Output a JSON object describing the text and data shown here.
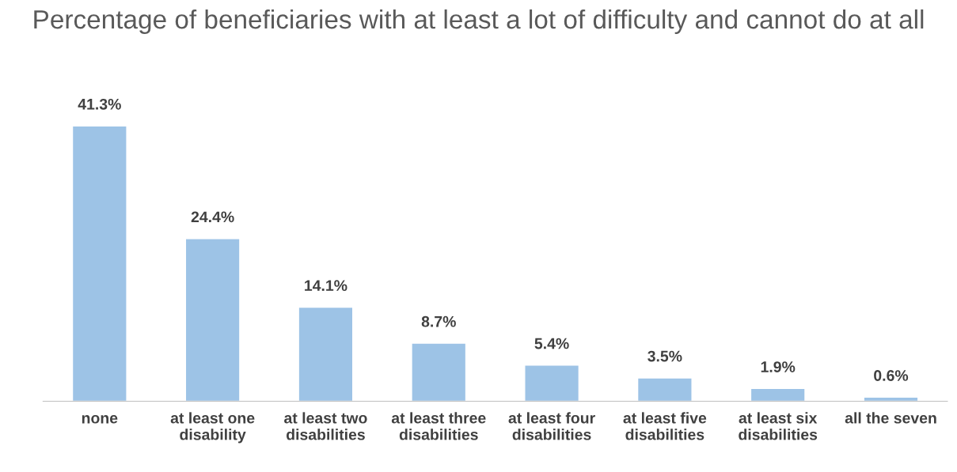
{
  "chart_data": {
    "type": "bar",
    "title": "Percentage of beneficiaries with at least a lot of difficulty and cannot do at all",
    "categories": [
      "none",
      "at least one disability",
      "at least two disabilities",
      "at least three disabilities",
      "at least four disabilities",
      "at least five disabilities",
      "at least six disabilities",
      "all the seven"
    ],
    "values": [
      41.3,
      24.4,
      14.1,
      8.7,
      5.4,
      3.5,
      1.9,
      0.6
    ],
    "value_labels": [
      "41.3%",
      "24.4%",
      "14.1%",
      "8.7%",
      "5.4%",
      "3.5%",
      "1.9%",
      "0.6%"
    ],
    "color": "#9dc3e6",
    "grid": false,
    "legend": false
  }
}
